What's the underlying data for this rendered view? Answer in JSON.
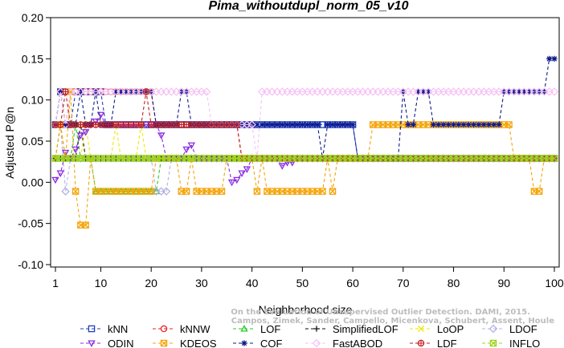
{
  "chart_data": {
    "type": "line",
    "title": "Pima_withoutdupl_norm_05_v10",
    "xlabel": "Neighborhood size",
    "ylabel": "Adjusted P@n",
    "xlim": [
      1,
      100
    ],
    "ylim": [
      -0.1,
      0.2
    ],
    "x_ticks": [
      "1",
      "10",
      "20",
      "30",
      "40",
      "50",
      "60",
      "70",
      "80",
      "90",
      "100"
    ],
    "y_ticks": [
      "-0.10",
      "-0.05",
      "0.00",
      "0.05",
      "0.10",
      "0.15",
      "0.20"
    ],
    "grid": false,
    "legend_position": "bottom",
    "watermark": [
      "Campos, Zimek, Sander, Campello, Micenkova, Schubert, Assent, Houle",
      "On the Evaluation of Unsupervised Outlier Detection. DAMI, 2015."
    ],
    "series": [
      {
        "name": "kNN",
        "color": "#1f3fbf",
        "marker": "square",
        "segments": [
          [
            1,
            0.07
          ],
          [
            2,
            0.11
          ],
          [
            3,
            0.07
          ],
          [
            4,
            0.07
          ],
          [
            5,
            0.11
          ],
          [
            10,
            0.11
          ],
          [
            11,
            0.07
          ],
          [
            60,
            0.07
          ],
          [
            61,
            0.029
          ],
          [
            100,
            0.029
          ]
        ]
      },
      {
        "name": "kNNW",
        "color": "#e8221f",
        "marker": "circle",
        "segments": [
          [
            1,
            0.07
          ],
          [
            2,
            0.11
          ],
          [
            3,
            0.07
          ],
          [
            4,
            0.11
          ],
          [
            20,
            0.11
          ],
          [
            21,
            0.07
          ],
          [
            37,
            0.07
          ],
          [
            38,
            0.029
          ],
          [
            100,
            0.029
          ]
        ]
      },
      {
        "name": "LOF",
        "color": "#22cc22",
        "marker": "triangle-up",
        "segments": [
          [
            1,
            0.029
          ],
          [
            2,
            0.07
          ],
          [
            3,
            0.029
          ],
          [
            4,
            0.029
          ],
          [
            5,
            0.07
          ],
          [
            6,
            0.029
          ],
          [
            8,
            0.029
          ],
          [
            9,
            -0.011
          ],
          [
            21,
            -0.011
          ],
          [
            22,
            0.029
          ],
          [
            100,
            0.029
          ]
        ]
      },
      {
        "name": "SimplifiedLOF",
        "color": "#111111",
        "marker": "plus",
        "segments": [
          [
            1,
            0.029
          ],
          [
            5,
            0.029
          ],
          [
            6,
            0.07
          ],
          [
            7,
            0.029
          ],
          [
            100,
            0.029
          ]
        ]
      },
      {
        "name": "LoOP",
        "color": "#f2e600",
        "marker": "x",
        "segments": [
          [
            1,
            0.029
          ],
          [
            2,
            0.07
          ],
          [
            3,
            0.029
          ],
          [
            6,
            0.029
          ],
          [
            7,
            0.07
          ],
          [
            8,
            0.029
          ],
          [
            12,
            0.029
          ],
          [
            13,
            0.07
          ],
          [
            14,
            0.029
          ],
          [
            17,
            0.029
          ],
          [
            18,
            0.07
          ],
          [
            19,
            0.029
          ],
          [
            100,
            0.029
          ]
        ]
      },
      {
        "name": "LDOF",
        "color": "#b3b3e6",
        "marker": "diamond",
        "segments": [
          [
            1,
            0.029
          ],
          [
            2,
            0.07
          ],
          [
            3,
            -0.011
          ],
          [
            4,
            0.029
          ],
          [
            20,
            0.029
          ],
          [
            21,
            -0.011
          ],
          [
            23,
            -0.011
          ],
          [
            24,
            0.029
          ],
          [
            100,
            0.029
          ]
        ]
      },
      {
        "name": "ODIN",
        "color": "#8a2be2",
        "marker": "triangle-down",
        "segments": [
          [
            1,
            0.003
          ],
          [
            2,
            0.011
          ],
          [
            3,
            0.036
          ],
          [
            4,
            0.029
          ],
          [
            5,
            0.04
          ],
          [
            6,
            0.057
          ],
          [
            7,
            0.061
          ],
          [
            8,
            0.07
          ],
          [
            9,
            0.074
          ],
          [
            10,
            0.082
          ],
          [
            11,
            0.07
          ],
          [
            21,
            0.07
          ],
          [
            22,
            0.057
          ],
          [
            23,
            0.029
          ],
          [
            26,
            0.029
          ],
          [
            27,
            0.04
          ],
          [
            28,
            0.045
          ],
          [
            29,
            0.029
          ],
          [
            35,
            0.029
          ],
          [
            36,
            0.0
          ],
          [
            37,
            0.003
          ],
          [
            38,
            0.011
          ],
          [
            39,
            0.016
          ],
          [
            40,
            0.029
          ],
          [
            45,
            0.029
          ],
          [
            46,
            0.02
          ],
          [
            47,
            0.024
          ],
          [
            48,
            0.024
          ],
          [
            49,
            0.029
          ],
          [
            100,
            0.029
          ]
        ]
      },
      {
        "name": "KDEOS",
        "color": "#f5a50a",
        "marker": "square-x",
        "segments": [
          [
            1,
            0.029
          ],
          [
            2,
            0.07
          ],
          [
            3,
            0.029
          ],
          [
            4,
            0.11
          ],
          [
            5,
            -0.011
          ],
          [
            6,
            -0.052
          ],
          [
            7,
            -0.052
          ],
          [
            8,
            0.029
          ],
          [
            9,
            -0.011
          ],
          [
            20,
            -0.011
          ],
          [
            21,
            0.029
          ],
          [
            25,
            0.029
          ],
          [
            26,
            -0.011
          ],
          [
            27,
            -0.011
          ],
          [
            28,
            0.029
          ],
          [
            29,
            -0.011
          ],
          [
            34,
            -0.011
          ],
          [
            35,
            0.029
          ],
          [
            40,
            0.029
          ],
          [
            41,
            -0.011
          ],
          [
            42,
            0.029
          ],
          [
            43,
            -0.011
          ],
          [
            54,
            -0.011
          ],
          [
            55,
            0.029
          ],
          [
            56,
            -0.011
          ],
          [
            57,
            0.029
          ],
          [
            63,
            0.029
          ],
          [
            64,
            0.07
          ],
          [
            91,
            0.07
          ],
          [
            92,
            0.029
          ],
          [
            95,
            0.029
          ],
          [
            96,
            -0.011
          ],
          [
            97,
            -0.011
          ],
          [
            98,
            0.029
          ],
          [
            100,
            0.029
          ]
        ]
      },
      {
        "name": "COF",
        "color": "#0d1a8c",
        "marker": "asterisk",
        "segments": [
          [
            1,
            0.07
          ],
          [
            2,
            0.11
          ],
          [
            3,
            0.07
          ],
          [
            5,
            0.07
          ],
          [
            6,
            0.11
          ],
          [
            7,
            0.07
          ],
          [
            8,
            0.07
          ],
          [
            9,
            0.11
          ],
          [
            10,
            0.07
          ],
          [
            12,
            0.07
          ],
          [
            13,
            0.11
          ],
          [
            20,
            0.11
          ],
          [
            21,
            0.07
          ],
          [
            25,
            0.07
          ],
          [
            26,
            0.11
          ],
          [
            27,
            0.11
          ],
          [
            28,
            0.07
          ],
          [
            53,
            0.07
          ],
          [
            54,
            0.029
          ],
          [
            55,
            0.07
          ],
          [
            60,
            0.07
          ],
          [
            61,
            0.029
          ],
          [
            69,
            0.029
          ],
          [
            70,
            0.11
          ],
          [
            71,
            0.07
          ],
          [
            72,
            0.07
          ],
          [
            73,
            0.11
          ],
          [
            75,
            0.11
          ],
          [
            76,
            0.07
          ],
          [
            89,
            0.07
          ],
          [
            90,
            0.11
          ],
          [
            98,
            0.11
          ],
          [
            99,
            0.15
          ],
          [
            100,
            0.15
          ]
        ]
      },
      {
        "name": "FastABOD",
        "color": "#f5c4f5",
        "marker": "diamond",
        "segments": [
          [
            1,
            0.07
          ],
          [
            2,
            0.11
          ],
          [
            3,
            0.07
          ],
          [
            4,
            0.11
          ],
          [
            31,
            0.11
          ],
          [
            32,
            0.07
          ],
          [
            40,
            0.07
          ],
          [
            41,
            0.029
          ],
          [
            42,
            0.11
          ],
          [
            100,
            0.11
          ]
        ]
      },
      {
        "name": "LDF",
        "color": "#c21f1f",
        "marker": "circle-plus",
        "segments": [
          [
            1,
            0.07
          ],
          [
            2,
            0.07
          ],
          [
            3,
            0.11
          ],
          [
            4,
            0.07
          ],
          [
            18,
            0.07
          ],
          [
            19,
            0.11
          ],
          [
            20,
            0.07
          ],
          [
            37,
            0.07
          ],
          [
            38,
            0.029
          ],
          [
            100,
            0.029
          ]
        ]
      },
      {
        "name": "INFLO",
        "color": "#9bd41c",
        "marker": "square-x",
        "segments": [
          [
            1,
            0.029
          ],
          [
            100,
            0.029
          ]
        ]
      }
    ]
  }
}
